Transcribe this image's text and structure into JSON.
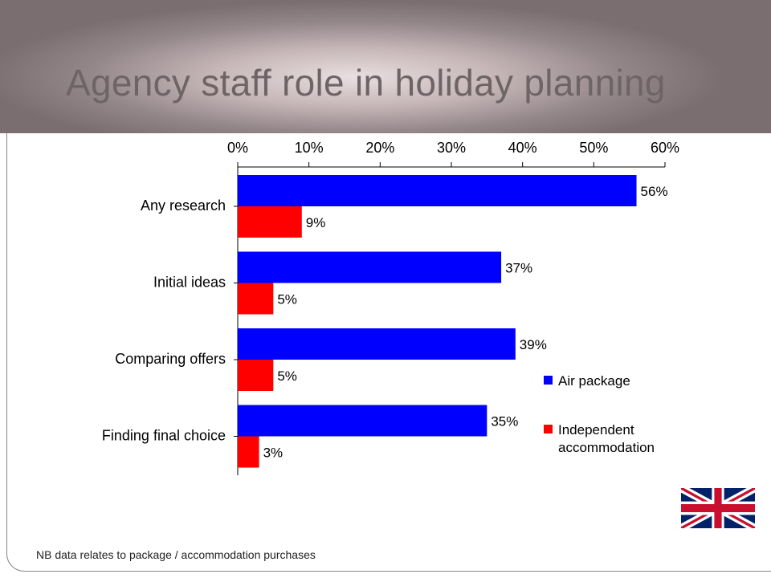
{
  "slide": {
    "title": "Agency staff role in holiday planning",
    "footnote": "NB data relates to package / accommodation purchases"
  },
  "flag": {
    "icon": "union-jack-flag"
  },
  "colors": {
    "air_package": "#0000ff",
    "independent_accommodation": "#ff0000",
    "title_bar": "#8c7f82",
    "title_text": "#6e6466"
  },
  "chart_data": {
    "type": "bar",
    "orientation": "horizontal",
    "categories": [
      "Any research",
      "Initial ideas",
      "Comparing offers",
      "Finding final choice"
    ],
    "series": [
      {
        "name": "Air package",
        "values": [
          56,
          37,
          39,
          35
        ],
        "labels": [
          "56%",
          "37%",
          "39%",
          "35%"
        ],
        "color": "#0000ff"
      },
      {
        "name": "Independent accommodation",
        "values": [
          9,
          5,
          5,
          3
        ],
        "labels": [
          "9%",
          "5%",
          "5%",
          "3%"
        ],
        "color": "#ff0000"
      }
    ],
    "x_ticks": [
      "0%",
      "10%",
      "20%",
      "30%",
      "40%",
      "50%",
      "60%"
    ],
    "xlim": [
      0,
      60
    ],
    "x_axis_position": "top",
    "legend_position": "right",
    "legend": [
      {
        "lines": [
          "Air package"
        ],
        "color": "#0000ff"
      },
      {
        "lines": [
          "Independent",
          "accommodation"
        ],
        "color": "#ff0000"
      }
    ],
    "grid": false
  }
}
